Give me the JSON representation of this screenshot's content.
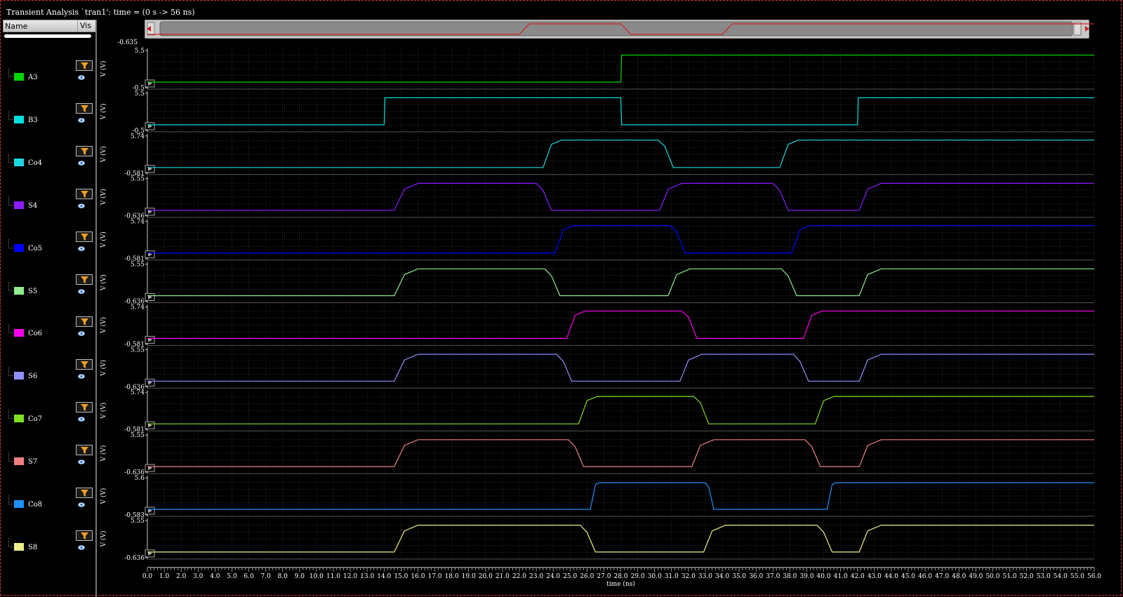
{
  "window": {
    "title": "Transient Analysis `tran1': time = (0 s -> 56 ns)"
  },
  "sidebar": {
    "header_name": "Name",
    "header_vis": "Vis"
  },
  "icons": {
    "filter": "filter-icon",
    "visibility": "eye-icon",
    "expand": "play-arrow-icon"
  },
  "chart_data": {
    "type": "line",
    "xlabel": "time (ns)",
    "xlim": [
      0,
      56
    ],
    "x_ticks": [
      "0.0",
      "1.0",
      "2.0",
      "3.0",
      "4.0",
      "5.0",
      "6.0",
      "7.0",
      "8.0",
      "9.0",
      "10.0",
      "11.0",
      "12.0",
      "13.0",
      "14.0",
      "15.0",
      "16.0",
      "17.0",
      "18.0",
      "19.0",
      "20.0",
      "21.0",
      "22.0",
      "23.0",
      "24.0",
      "25.0",
      "26.0",
      "27.0",
      "28.0",
      "29.0",
      "30.0",
      "31.0",
      "32.0",
      "33.0",
      "34.0",
      "35.0",
      "36.0",
      "37.0",
      "38.0",
      "39.0",
      "40.0",
      "41.0",
      "42.0",
      "43.0",
      "44.0",
      "45.0",
      "46.0",
      "47.0",
      "48.0",
      "49.0",
      "50.0",
      "51.0",
      "52.0",
      "53.0",
      "54.0",
      "55.0",
      "56.0"
    ],
    "overview_top_label": "-0.635",
    "grid": true,
    "series": [
      {
        "name": "A3",
        "color": "#00d400",
        "ylabel": "V (V)",
        "ymax_label": "5.5",
        "ymin_label": "-0.5",
        "ylim": [
          -0.5,
          5.5
        ],
        "x": [
          0,
          28,
          28.05,
          56
        ],
        "y": [
          -0.5,
          -0.5,
          5.0,
          5.0
        ]
      },
      {
        "name": "B3",
        "color": "#00e0e0",
        "ylabel": "V (V)",
        "ymax_label": "5.5",
        "ymin_label": "-0.5",
        "ylim": [
          -0.5,
          5.5
        ],
        "x": [
          0,
          14,
          14.05,
          28,
          28.05,
          42,
          42.05,
          56
        ],
        "y": [
          -0.5,
          -0.5,
          5.0,
          5.0,
          -0.5,
          -0.5,
          5.0,
          5.0
        ]
      },
      {
        "name": "Co4",
        "color": "#1ed8e0",
        "ylabel": "V (V)",
        "ymax_label": "5.74",
        "ymin_label": "-0.581",
        "ylim": [
          -0.581,
          5.74
        ],
        "x": [
          0,
          23.4,
          23.9,
          24.5,
          30.2,
          30.6,
          31.1,
          37.4,
          37.9,
          38.5,
          56
        ],
        "y": [
          -0.581,
          -0.581,
          4.4,
          5.3,
          5.3,
          4.0,
          -0.581,
          -0.581,
          4.4,
          5.3,
          5.3
        ]
      },
      {
        "name": "S4",
        "color": "#8a1cff",
        "ylabel": "V (V)",
        "ymax_label": "5.55",
        "ymin_label": "-0.636",
        "ylim": [
          -0.636,
          5.55
        ],
        "x": [
          0,
          14.6,
          15.2,
          16.0,
          23.0,
          23.4,
          23.9,
          30.3,
          30.8,
          31.6,
          37.0,
          37.4,
          37.9,
          42.1,
          42.6,
          43.4,
          56
        ],
        "y": [
          -0.636,
          -0.636,
          3.8,
          5.0,
          5.0,
          3.5,
          -0.636,
          -0.636,
          3.8,
          5.0,
          5.0,
          3.5,
          -0.636,
          -0.636,
          3.8,
          5.0,
          5.0
        ]
      },
      {
        "name": "Co5",
        "color": "#0000ff",
        "ylabel": "V (V)",
        "ymax_label": "5.74",
        "ymin_label": "-0.581",
        "ylim": [
          -0.581,
          5.74
        ],
        "x": [
          0,
          24.1,
          24.6,
          25.2,
          30.9,
          31.3,
          31.8,
          38.1,
          38.6,
          39.2,
          56
        ],
        "y": [
          -0.581,
          -0.581,
          4.4,
          5.3,
          5.3,
          4.0,
          -0.581,
          -0.581,
          4.4,
          5.3,
          5.3
        ]
      },
      {
        "name": "S5",
        "color": "#90ee90",
        "ylabel": "V (V)",
        "ymax_label": "5.55",
        "ymin_label": "-0.636",
        "ylim": [
          -0.636,
          5.55
        ],
        "x": [
          0,
          14.6,
          15.2,
          16.0,
          23.5,
          23.9,
          24.4,
          30.8,
          31.3,
          32.1,
          37.5,
          37.9,
          38.4,
          42.1,
          42.6,
          43.4,
          56
        ],
        "y": [
          -0.636,
          -0.636,
          3.8,
          5.0,
          5.0,
          3.5,
          -0.636,
          -0.636,
          3.8,
          5.0,
          5.0,
          3.5,
          -0.636,
          -0.636,
          3.8,
          5.0,
          5.0
        ]
      },
      {
        "name": "Co6",
        "color": "#ff00ee",
        "ylabel": "V (V)",
        "ymax_label": "5.74",
        "ymin_label": "-0.581",
        "ylim": [
          -0.581,
          5.74
        ],
        "x": [
          0,
          24.8,
          25.3,
          25.9,
          31.6,
          32.0,
          32.5,
          38.8,
          39.3,
          39.9,
          56
        ],
        "y": [
          -0.581,
          -0.581,
          4.4,
          5.3,
          5.3,
          4.0,
          -0.581,
          -0.581,
          4.4,
          5.3,
          5.3
        ]
      },
      {
        "name": "S6",
        "color": "#9090ff",
        "ylabel": "V (V)",
        "ymax_label": "5.55",
        "ymin_label": "-0.636",
        "ylim": [
          -0.636,
          5.55
        ],
        "x": [
          0,
          14.6,
          15.2,
          16.0,
          24.2,
          24.6,
          25.1,
          31.5,
          32.0,
          32.8,
          38.2,
          38.6,
          39.1,
          42.1,
          42.6,
          43.4,
          56
        ],
        "y": [
          -0.636,
          -0.636,
          3.8,
          5.0,
          5.0,
          3.5,
          -0.636,
          -0.636,
          3.8,
          5.0,
          5.0,
          3.5,
          -0.636,
          -0.636,
          3.8,
          5.0,
          5.0
        ]
      },
      {
        "name": "Co7",
        "color": "#80e020",
        "ylabel": "V (V)",
        "ymax_label": "5.74",
        "ymin_label": "-0.581",
        "ylim": [
          -0.581,
          5.74
        ],
        "x": [
          0,
          25.5,
          26.0,
          26.6,
          32.3,
          32.7,
          33.2,
          39.5,
          40.0,
          40.6,
          56
        ],
        "y": [
          -0.581,
          -0.581,
          4.4,
          5.3,
          5.3,
          4.0,
          -0.581,
          -0.581,
          4.4,
          5.3,
          5.3
        ]
      },
      {
        "name": "S7",
        "color": "#f08080",
        "ylabel": "V (V)",
        "ymax_label": "5.55",
        "ymin_label": "-0.636",
        "ylim": [
          -0.636,
          5.55
        ],
        "x": [
          0,
          14.6,
          15.2,
          16.0,
          24.9,
          25.3,
          25.8,
          32.2,
          32.7,
          33.5,
          38.9,
          39.3,
          39.8,
          42.1,
          42.6,
          43.4,
          56
        ],
        "y": [
          -0.636,
          -0.636,
          3.8,
          5.0,
          5.0,
          3.5,
          -0.636,
          -0.636,
          3.8,
          5.0,
          5.0,
          3.5,
          -0.636,
          -0.636,
          3.8,
          5.0,
          5.0
        ]
      },
      {
        "name": "Co8",
        "color": "#1e90ff",
        "ylabel": "V (V)",
        "ymax_label": "5.6",
        "ymin_label": "-0.583",
        "ylim": [
          -0.583,
          5.6
        ],
        "x": [
          0,
          26.2,
          26.5,
          26.7,
          33.0,
          33.2,
          33.5,
          40.2,
          40.5,
          40.7,
          56
        ],
        "y": [
          -0.583,
          -0.583,
          4.6,
          5.0,
          5.0,
          4.0,
          -0.583,
          -0.583,
          4.6,
          5.0,
          5.0
        ]
      },
      {
        "name": "S8",
        "color": "#eeee88",
        "ylabel": "V (V)",
        "ymax_label": "5.55",
        "ymin_label": "-0.636",
        "ylim": [
          -0.636,
          5.55
        ],
        "x": [
          0,
          14.6,
          15.2,
          16.0,
          25.6,
          26.0,
          26.5,
          32.9,
          33.4,
          34.2,
          39.6,
          40.0,
          40.5,
          42.1,
          42.6,
          43.4,
          56
        ],
        "y": [
          -0.636,
          -0.636,
          3.8,
          5.0,
          5.0,
          3.5,
          -0.636,
          -0.636,
          3.8,
          5.0,
          5.0,
          3.5,
          -0.636,
          -0.636,
          3.8,
          5.0,
          5.0
        ]
      }
    ],
    "overview": {
      "color": "#d02020",
      "x": [
        0,
        22,
        22.6,
        28,
        28.6,
        34,
        34.6,
        56
      ],
      "y": [
        0,
        0,
        1,
        1,
        0,
        0,
        1,
        1
      ]
    }
  }
}
